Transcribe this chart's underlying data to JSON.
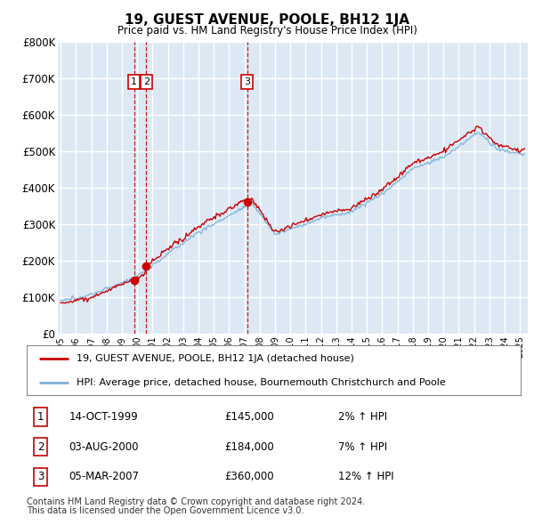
{
  "title": "19, GUEST AVENUE, POOLE, BH12 1JA",
  "subtitle": "Price paid vs. HM Land Registry's House Price Index (HPI)",
  "ylabel_ticks": [
    "£0",
    "£100K",
    "£200K",
    "£300K",
    "£400K",
    "£500K",
    "£600K",
    "£700K",
    "£800K"
  ],
  "ytick_values": [
    0,
    100000,
    200000,
    300000,
    400000,
    500000,
    600000,
    700000,
    800000
  ],
  "ylim": [
    0,
    800000
  ],
  "xlim_start": 1994.8,
  "xlim_end": 2025.5,
  "background_color": "#dce9f5",
  "grid_color": "#ffffff",
  "red_line_color": "#cc0000",
  "blue_line_color": "#7fb0d8",
  "sale_marker_color": "#cc0000",
  "dashed_line_color": "#cc0000",
  "transactions": [
    {
      "num": 1,
      "date": "14-OCT-1999",
      "price": 145000,
      "pct": "2%",
      "year": 1999.79
    },
    {
      "num": 2,
      "date": "03-AUG-2000",
      "price": 184000,
      "pct": "7%",
      "year": 2000.58
    },
    {
      "num": 3,
      "date": "05-MAR-2007",
      "price": 360000,
      "pct": "12%",
      "year": 2007.17
    }
  ],
  "legend_line1": "19, GUEST AVENUE, POOLE, BH12 1JA (detached house)",
  "legend_line2": "HPI: Average price, detached house, Bournemouth Christchurch and Poole",
  "footnote1": "Contains HM Land Registry data © Crown copyright and database right 2024.",
  "footnote2": "This data is licensed under the Open Government Licence v3.0.",
  "xtick_years": [
    1995,
    1996,
    1997,
    1998,
    1999,
    2000,
    2001,
    2002,
    2003,
    2004,
    2005,
    2006,
    2007,
    2008,
    2009,
    2010,
    2011,
    2012,
    2013,
    2014,
    2015,
    2016,
    2017,
    2018,
    2019,
    2020,
    2021,
    2022,
    2023,
    2024,
    2025
  ]
}
